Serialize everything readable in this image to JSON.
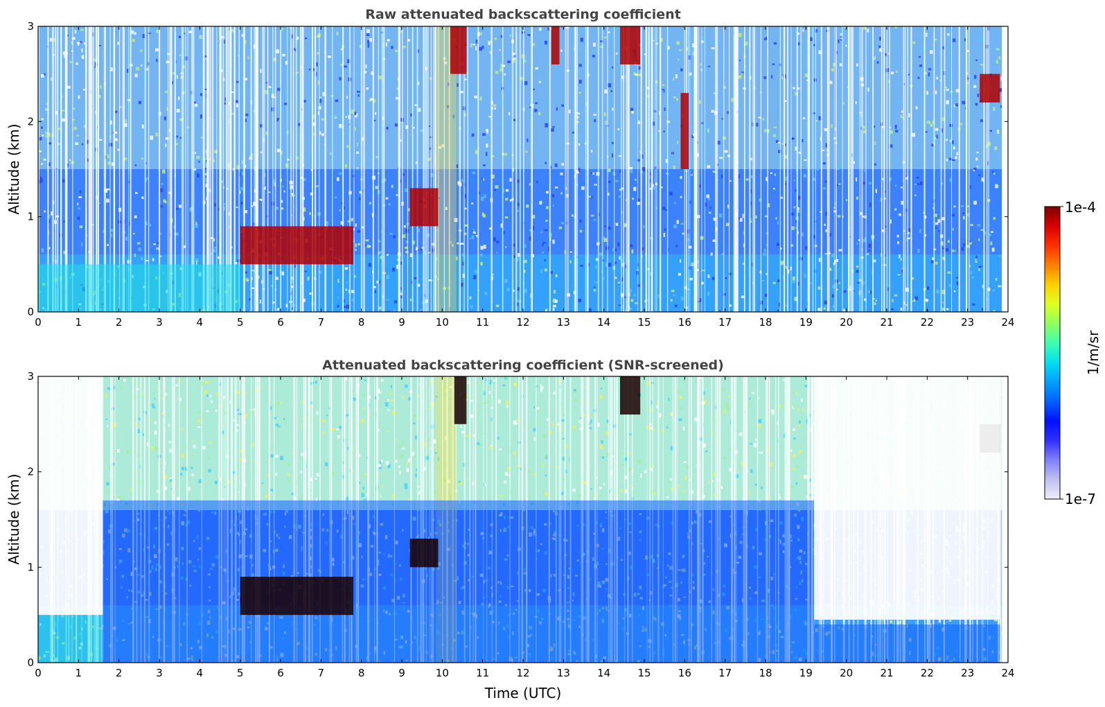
{
  "chart_data": [
    {
      "type": "heatmap",
      "title": "Raw attenuated backscattering coefficient",
      "xlabel": "",
      "ylabel": "Altitude (km)",
      "xlim": [
        0,
        24
      ],
      "ylim": [
        0,
        3
      ],
      "x_ticks": [
        "0",
        "1",
        "2",
        "3",
        "4",
        "5",
        "6",
        "7",
        "8",
        "9",
        "10",
        "11",
        "12",
        "13",
        "14",
        "15",
        "16",
        "17",
        "18",
        "19",
        "20",
        "21",
        "22",
        "23",
        "24"
      ],
      "y_ticks": [
        "0",
        "1",
        "2",
        "3"
      ],
      "colormap": "jet",
      "color_scale": "log",
      "features": [
        {
          "time_start": 0,
          "time_end": 5,
          "alt_top": 0.5,
          "level": "moderate"
        },
        {
          "time_start": 5,
          "time_end": 7.8,
          "alt_bottom": 0.5,
          "alt_top": 0.9,
          "level": "very high"
        },
        {
          "time_start": 9.2,
          "time_end": 9.9,
          "alt_bottom": 0.9,
          "alt_top": 1.3,
          "level": "very high"
        },
        {
          "time_start": 10.2,
          "time_end": 10.6,
          "alt_bottom": 2.5,
          "alt_top": 3.0,
          "level": "very high"
        },
        {
          "time_start": 12.7,
          "time_end": 12.9,
          "alt_bottom": 2.6,
          "alt_top": 3.0,
          "level": "very high"
        },
        {
          "time_start": 14.4,
          "time_end": 14.9,
          "alt_bottom": 2.6,
          "alt_top": 3.0,
          "level": "very high"
        },
        {
          "time_start": 15.9,
          "time_end": 16.1,
          "alt_bottom": 1.5,
          "alt_top": 2.3,
          "level": "very high"
        },
        {
          "time_start": 23.3,
          "time_end": 23.8,
          "alt_bottom": 2.2,
          "alt_top": 2.5,
          "level": "very high"
        }
      ]
    },
    {
      "type": "heatmap",
      "title": "Attenuated backscattering coefficient (SNR-screened)",
      "xlabel": "Time (UTC)",
      "ylabel": "Altitude (km)",
      "xlim": [
        0,
        24
      ],
      "ylim": [
        0,
        3
      ],
      "x_ticks": [
        "0",
        "1",
        "2",
        "3",
        "4",
        "5",
        "6",
        "7",
        "8",
        "9",
        "10",
        "11",
        "12",
        "13",
        "14",
        "15",
        "16",
        "17",
        "18",
        "19",
        "20",
        "21",
        "22",
        "23",
        "24"
      ],
      "y_ticks": [
        "0",
        "1",
        "2",
        "3"
      ],
      "colormap": "jet",
      "color_scale": "log",
      "features": [
        {
          "time_start": 0,
          "time_end": 1.6,
          "alt_top": 0.5,
          "level": "moderate"
        },
        {
          "time_start": 1.6,
          "time_end": 19.2,
          "alt_top": 1.7,
          "level": "low"
        },
        {
          "time_start": 5,
          "time_end": 7.8,
          "alt_bottom": 0.5,
          "alt_top": 0.9,
          "level": "saturated"
        },
        {
          "time_start": 9.2,
          "time_end": 9.9,
          "alt_bottom": 1.0,
          "alt_top": 1.3,
          "level": "saturated"
        },
        {
          "time_start": 10.3,
          "time_end": 10.6,
          "alt_bottom": 2.5,
          "alt_top": 3.0,
          "level": "saturated"
        },
        {
          "time_start": 14.4,
          "time_end": 14.9,
          "alt_bottom": 2.6,
          "alt_top": 3.0,
          "level": "saturated"
        },
        {
          "time_start": 19.2,
          "time_end": 23.8,
          "alt_top": 0.4,
          "level": "low"
        },
        {
          "time_start": 23.3,
          "time_end": 23.8,
          "alt_bottom": 2.2,
          "alt_top": 2.5,
          "level": "saturated"
        }
      ]
    }
  ],
  "colorbar": {
    "label": "1/m/sr",
    "max_label": "1e-4",
    "min_label": "1e-7",
    "colors": [
      "#7f0000",
      "#d70000",
      "#ff3000",
      "#ff8000",
      "#ffd000",
      "#e0ff20",
      "#90ff60",
      "#40ffb0",
      "#00e0f0",
      "#00a0ff",
      "#0060ff",
      "#0010ff",
      "#3030ff",
      "#8080ff",
      "#c0c0f0",
      "#eeeef8"
    ]
  }
}
